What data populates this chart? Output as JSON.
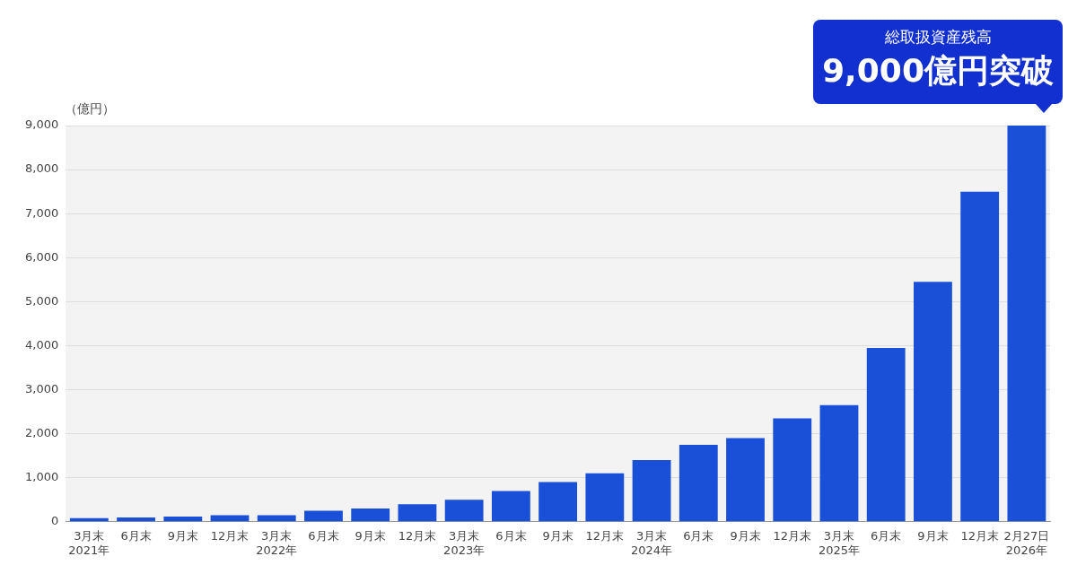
{
  "chart_data": {
    "type": "bar",
    "ylabel": "（億円）",
    "categories": [
      "3月末\n2021年",
      "6月末",
      "9月末",
      "12月末",
      "3月末\n2022年",
      "6月末",
      "9月末",
      "12月末",
      "3月末\n2023年",
      "6月末",
      "9月末",
      "12月末",
      "3月末\n2024年",
      "6月末",
      "9月末",
      "12月末",
      "3月末\n2025年",
      "6月末",
      "9月末",
      "12月末",
      "2月27日\n2026年"
    ],
    "values": [
      80,
      100,
      120,
      150,
      150,
      250,
      300,
      400,
      500,
      700,
      900,
      1100,
      1400,
      1750,
      1900,
      2350,
      2650,
      3950,
      5450,
      7500,
      9000
    ],
    "color": "#1a4fd8",
    "ylim": [
      0,
      9000
    ],
    "yticks": [
      0,
      {
        "value": 1000,
        "label": "1,000"
      },
      {
        "value": 2000,
        "label": "2,000"
      },
      {
        "value": 3000,
        "label": "3,000"
      },
      {
        "value": 4000,
        "label": "4,000"
      },
      {
        "value": 5000,
        "label": "5,000"
      },
      {
        "value": 6000,
        "label": "6,000"
      },
      {
        "value": 7000,
        "label": "7,000"
      },
      {
        "value": 8000,
        "label": "8,000"
      },
      {
        "value": 9000,
        "label": "9,000"
      }
    ],
    "grid": "y",
    "legend": false,
    "annotations": [
      "総取扱資産残高",
      "9,000億円突破"
    ]
  }
}
